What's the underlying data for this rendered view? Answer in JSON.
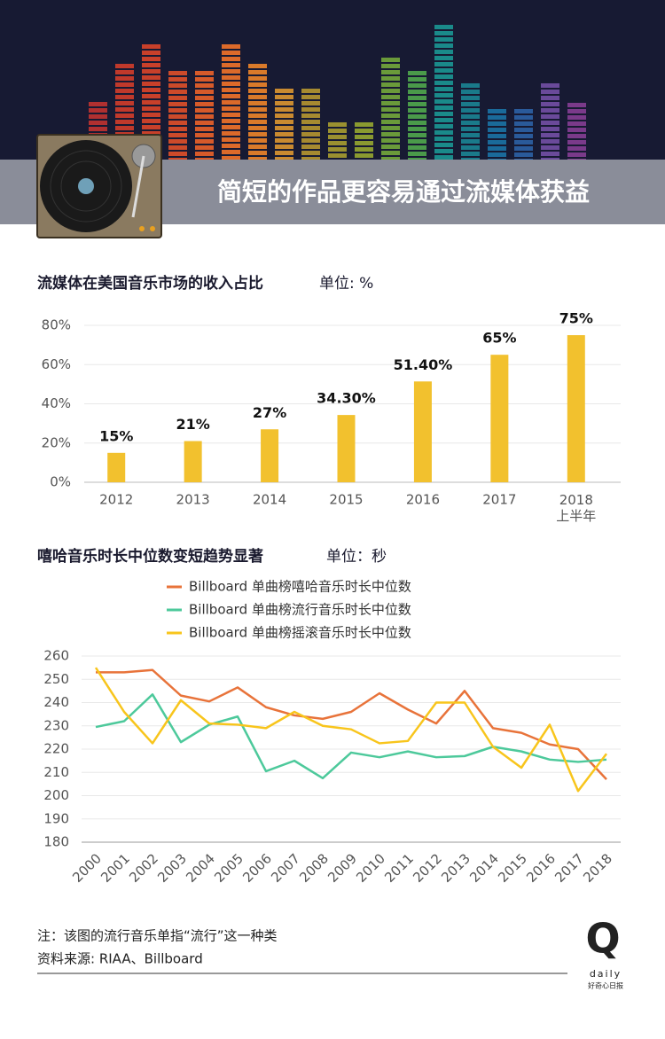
{
  "header": {
    "title": "简短的作品更容易通过流媒体获益"
  },
  "chart_data": [
    {
      "type": "bar",
      "title": "流媒体在美国音乐市场的收入占比",
      "subtitle": "单位: %",
      "categories": [
        "2012",
        "2013",
        "2014",
        "2015",
        "2016",
        "2017",
        "2018\n上半年"
      ],
      "values": [
        15,
        21,
        27,
        34.3,
        51.4,
        65,
        75
      ],
      "value_labels": [
        "15%",
        "21%",
        "27%",
        "34.30%",
        "51.40%",
        "65%",
        "75%"
      ],
      "color": "#f2c12e",
      "ylim": [
        0,
        80
      ],
      "yticks": [
        {
          "value": 0,
          "label": "0%"
        },
        {
          "value": 20,
          "label": "20%"
        },
        {
          "value": 40,
          "label": "40%"
        },
        {
          "value": 60,
          "label": "60%"
        },
        {
          "value": 80,
          "label": "80%"
        }
      ],
      "grid": true
    },
    {
      "type": "line",
      "title": "嘻哈音乐时长中位数变短趋势显著",
      "subtitle": "单位：秒",
      "categories": [
        "2000",
        "2001",
        "2002",
        "2003",
        "2004",
        "2005",
        "2006",
        "2007",
        "2008",
        "2009",
        "2010",
        "2011",
        "2012",
        "2013",
        "2014",
        "2015",
        "2016",
        "2017",
        "2018"
      ],
      "series": [
        {
          "name": "Billboard 单曲榜嘻哈音乐时长中位数",
          "color": "#e8733a",
          "values": [
            253,
            253,
            254,
            243,
            240.5,
            246.5,
            238,
            234.5,
            233,
            236,
            244,
            237,
            231,
            245,
            229,
            227,
            222,
            220,
            207
          ]
        },
        {
          "name": "Billboard 单曲榜流行音乐时长中位数",
          "color": "#4dc99b",
          "values": [
            229.5,
            232,
            243.5,
            223,
            230.5,
            234,
            210.5,
            215,
            207.5,
            218.5,
            216.5,
            219,
            216.5,
            217,
            221,
            219,
            215.5,
            214.5,
            215.5
          ]
        },
        {
          "name": "Billboard 单曲榜摇滚音乐时长中位数",
          "color": "#f8c51c",
          "values": [
            255,
            236,
            222.5,
            241,
            231,
            230.5,
            229,
            236,
            230,
            228.5,
            222.5,
            223.5,
            240,
            240,
            221,
            212,
            230.5,
            202,
            218
          ]
        }
      ],
      "ylim": [
        180,
        260
      ],
      "yticks": [
        180,
        190,
        200,
        210,
        220,
        230,
        240,
        250,
        260
      ],
      "grid": true
    }
  ],
  "footer": {
    "note": "注：该图的流行音乐单指“流行”这一种类",
    "source": "资料来源: RIAA、Billboard",
    "logo": "Q",
    "logo_word": "daily",
    "logo_cn": "好奇心日报"
  }
}
